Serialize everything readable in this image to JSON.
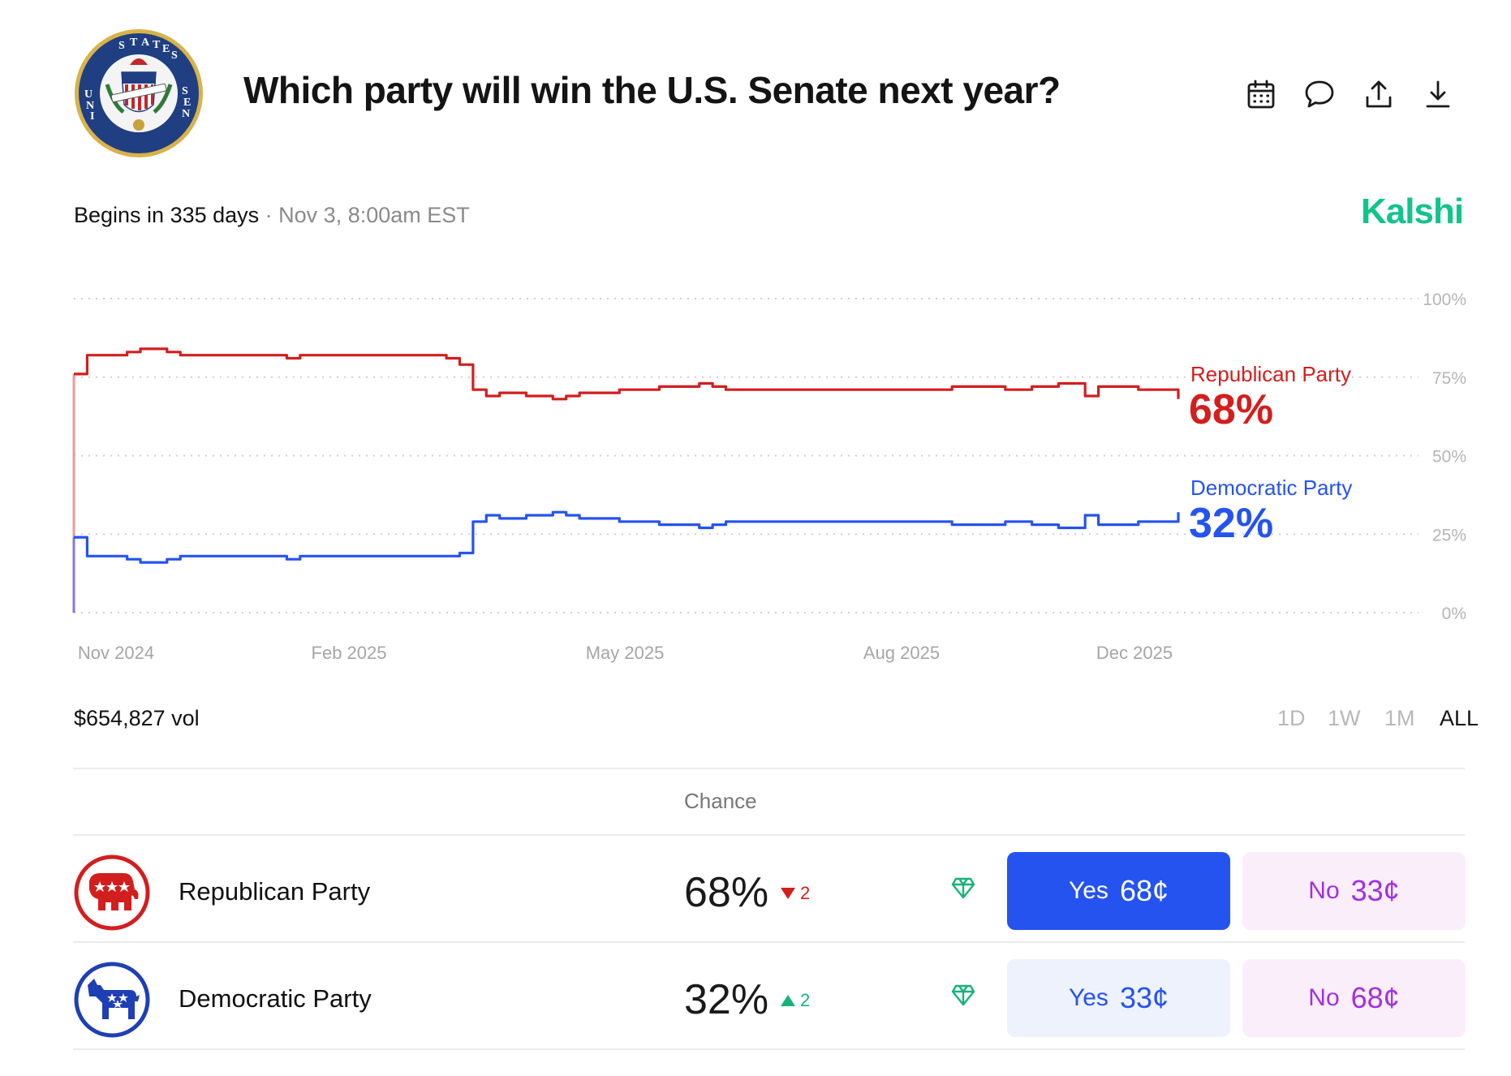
{
  "header": {
    "title": "Which party will win the U.S. Senate next year?",
    "seal_text": "UNITED STATES SENATE",
    "seal_motto": "E PLURIBUS UNUM",
    "icons": [
      "calendar-icon",
      "comment-icon",
      "share-icon",
      "download-icon"
    ]
  },
  "meta": {
    "begins": "Begins in 335 days",
    "date": "· Nov 3, 8:00am EST",
    "brand": "Kalshi",
    "brand_color": "#12c48b"
  },
  "chart_data": {
    "type": "line",
    "x_ticks": [
      "Nov 2024",
      "Feb 2025",
      "May 2025",
      "Aug 2025",
      "Dec 2025"
    ],
    "y_ticks": [
      "0%",
      "25%",
      "50%",
      "75%",
      "100%"
    ],
    "ylim": [
      0,
      100
    ],
    "grid": true,
    "series": [
      {
        "name": "Republican Party",
        "color": "#d31e1e",
        "current": "68%",
        "values": [
          76,
          82,
          82,
          82,
          83,
          84,
          84,
          83,
          82,
          82,
          82,
          82,
          82,
          82,
          82,
          82,
          81,
          82,
          82,
          82,
          82,
          82,
          82,
          82,
          82,
          82,
          82,
          82,
          81,
          79,
          71,
          69,
          70,
          70,
          69,
          69,
          68,
          69,
          70,
          70,
          70,
          71,
          71,
          71,
          72,
          72,
          72,
          73,
          72,
          71,
          71,
          71,
          71,
          71,
          71,
          71,
          71,
          71,
          71,
          71,
          71,
          71,
          71,
          71,
          71,
          71,
          72,
          72,
          72,
          72,
          71,
          71,
          72,
          72,
          73,
          73,
          69,
          72,
          72,
          72,
          71,
          71,
          71,
          68
        ]
      },
      {
        "name": "Democratic Party",
        "color": "#2553f0",
        "current": "32%",
        "values": [
          24,
          18,
          18,
          18,
          17,
          16,
          16,
          17,
          18,
          18,
          18,
          18,
          18,
          18,
          18,
          18,
          17,
          18,
          18,
          18,
          18,
          18,
          18,
          18,
          18,
          18,
          18,
          18,
          18,
          19,
          29,
          31,
          30,
          30,
          31,
          31,
          32,
          31,
          30,
          30,
          30,
          29,
          29,
          29,
          28,
          28,
          28,
          27,
          28,
          29,
          29,
          29,
          29,
          29,
          29,
          29,
          29,
          29,
          29,
          29,
          29,
          29,
          29,
          29,
          29,
          29,
          28,
          28,
          28,
          28,
          29,
          29,
          28,
          28,
          27,
          27,
          31,
          28,
          28,
          28,
          29,
          29,
          29,
          32
        ]
      }
    ]
  },
  "volume": "$654,827 vol",
  "ranges": [
    "1D",
    "1W",
    "1M",
    "ALL"
  ],
  "active_range": "ALL",
  "table": {
    "chance_header": "Chance",
    "rows": [
      {
        "name": "Republican Party",
        "chance": "68%",
        "change": "2",
        "change_dir": "down",
        "yes_label": "Yes",
        "yes_price": "68¢",
        "no_label": "No",
        "no_price": "33¢"
      },
      {
        "name": "Democratic Party",
        "chance": "32%",
        "change": "2",
        "change_dir": "up",
        "yes_label": "Yes",
        "yes_price": "33¢",
        "no_label": "No",
        "no_price": "68¢"
      }
    ]
  },
  "colors": {
    "republican": "#d31e1e",
    "democratic": "#2553f0",
    "yes_active_bg": "#2553f0",
    "yes_bg": "#eef2fd",
    "no_bg": "#fbeefb",
    "no_text": "#a22fe0",
    "up": "#17b27a",
    "down": "#d31e1e"
  }
}
